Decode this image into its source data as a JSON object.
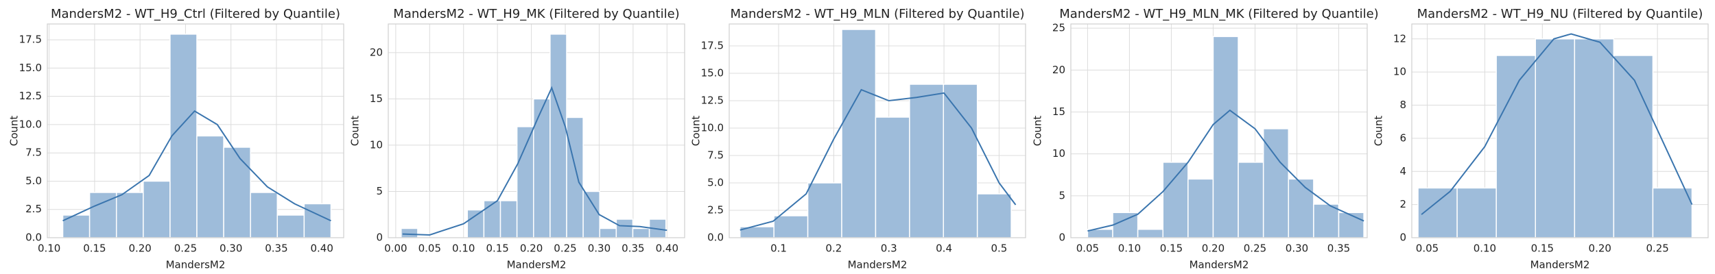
{
  "chart_data": [
    {
      "type": "histogram",
      "title": "MandersM2 - WT_H9_Ctrl (Filtered by Quantile)",
      "xlabel": "MandersM2",
      "ylabel": "Count",
      "bins": [
        0.115,
        0.1445,
        0.174,
        0.2035,
        0.233,
        0.2625,
        0.292,
        0.3215,
        0.351,
        0.3805,
        0.41
      ],
      "values": [
        2,
        4,
        4,
        5,
        18,
        9,
        8,
        4,
        2,
        3
      ],
      "kde": {
        "x": [
          0.115,
          0.15,
          0.18,
          0.21,
          0.235,
          0.26,
          0.285,
          0.31,
          0.34,
          0.37,
          0.41
        ],
        "values": [
          1.5,
          2.8,
          3.8,
          5.5,
          9,
          11.2,
          10,
          7,
          4.5,
          3,
          1.5
        ]
      },
      "color": "#9ebcda",
      "line_color": "#3a75ae",
      "grid": true,
      "xlim": [
        0.098,
        0.424
      ],
      "ylim": [
        0,
        18.9
      ],
      "xticks": [
        {
          "value": 0.1,
          "label": "0.10"
        },
        0.15,
        {
          "value": 0.2,
          "label": "0.20"
        },
        0.25,
        {
          "value": 0.3,
          "label": "0.30"
        },
        0.35,
        {
          "value": 0.4,
          "label": "0.40"
        }
      ],
      "yticks": [
        {
          "value": 0,
          "label": "0.0"
        },
        2.5,
        {
          "value": 5,
          "label": "5.0"
        },
        7.5,
        {
          "value": 10,
          "label": "10.0"
        },
        12.5,
        {
          "value": 15,
          "label": "15.0"
        },
        17.5
      ]
    },
    {
      "type": "histogram",
      "title": "MandersM2 - WT_H9_MK (Filtered by Quantile)",
      "xlabel": "MandersM2",
      "ylabel": "Count",
      "bins": [
        0.008,
        0.0324,
        0.0568,
        0.0812,
        0.1056,
        0.13,
        0.1544,
        0.1788,
        0.2032,
        0.2276,
        0.252,
        0.2764,
        0.3008,
        0.3252,
        0.3496,
        0.374,
        0.3984
      ],
      "values": [
        1,
        0,
        0,
        0,
        3,
        4,
        4,
        12,
        15,
        22,
        13,
        5,
        1,
        2,
        1,
        2
      ],
      "kde": {
        "x": [
          0.01,
          0.05,
          0.1,
          0.15,
          0.18,
          0.21,
          0.23,
          0.25,
          0.27,
          0.3,
          0.33,
          0.36,
          0.4
        ],
        "values": [
          0.4,
          0.3,
          1.5,
          4,
          8,
          13,
          16.2,
          12,
          6,
          2.5,
          1.3,
          1.2,
          0.8
        ]
      },
      "color": "#9ebcda",
      "line_color": "#3a75ae",
      "grid": true,
      "xlim": [
        -0.011,
        0.426
      ],
      "ylim": [
        0,
        23.1
      ],
      "xticks": [
        {
          "value": 0,
          "label": "0.00"
        },
        0.05,
        {
          "value": 0.1,
          "label": "0.10"
        },
        0.15,
        {
          "value": 0.2,
          "label": "0.20"
        },
        0.25,
        {
          "value": 0.3,
          "label": "0.30"
        },
        0.35,
        {
          "value": 0.4,
          "label": "0.40"
        }
      ],
      "yticks": [
        0,
        5,
        10,
        15,
        20
      ]
    },
    {
      "type": "histogram",
      "title": "MandersM2 - WT_H9_MLN (Filtered by Quantile)",
      "xlabel": "MandersM2",
      "ylabel": "Count",
      "bins": [
        0.03,
        0.0915,
        0.153,
        0.2145,
        0.276,
        0.3375,
        0.399,
        0.4605,
        0.522
      ],
      "values": [
        1,
        2,
        5,
        19,
        11,
        14,
        14,
        4
      ],
      "kde": {
        "x": [
          0.03,
          0.09,
          0.15,
          0.2,
          0.25,
          0.3,
          0.35,
          0.4,
          0.45,
          0.5,
          0.53
        ],
        "values": [
          0.7,
          1.5,
          4,
          9,
          13.5,
          12.5,
          12.8,
          13.2,
          10,
          5,
          3
        ]
      },
      "color": "#9ebcda",
      "line_color": "#3a75ae",
      "grid": true,
      "xlim": [
        0.0104,
        0.548
      ],
      "ylim": [
        0,
        19.5
      ],
      "xticks": [
        0.1,
        0.2,
        0.3,
        0.4,
        0.5
      ],
      "yticks": [
        {
          "value": 0,
          "label": "0.0"
        },
        2.5,
        {
          "value": 5,
          "label": "5.0"
        },
        7.5,
        {
          "value": 10,
          "label": "10.0"
        },
        12.5,
        {
          "value": 15,
          "label": "15.0"
        },
        17.5
      ]
    },
    {
      "type": "histogram",
      "title": "MandersM2 - WT_H9_MLN_MK (Filtered by Quantile)",
      "xlabel": "MandersM2",
      "ylabel": "Count",
      "bins": [
        0.05,
        0.08,
        0.11,
        0.14,
        0.17,
        0.2,
        0.23,
        0.26,
        0.29,
        0.32,
        0.35,
        0.38
      ],
      "values": [
        1,
        3,
        1,
        9,
        7,
        24,
        9,
        13,
        7,
        4,
        3
      ],
      "kde": {
        "x": [
          0.05,
          0.08,
          0.11,
          0.14,
          0.17,
          0.2,
          0.22,
          0.25,
          0.28,
          0.31,
          0.34,
          0.38
        ],
        "values": [
          0.8,
          1.5,
          2.8,
          5.5,
          9,
          13.5,
          15.2,
          13,
          9,
          6,
          3.8,
          2
        ]
      },
      "color": "#9ebcda",
      "line_color": "#3a75ae",
      "grid": true,
      "xlim": [
        0.03,
        0.384
      ],
      "ylim": [
        0,
        25.5
      ],
      "xticks": [
        0.05,
        {
          "value": 0.1,
          "label": "0.10"
        },
        0.15,
        {
          "value": 0.2,
          "label": "0.20"
        },
        0.25,
        {
          "value": 0.3,
          "label": "0.30"
        },
        0.35
      ],
      "yticks": [
        0,
        5,
        10,
        15,
        20,
        25
      ]
    },
    {
      "type": "histogram",
      "title": "MandersM2 - WT_H9_NU (Filtered by Quantile)",
      "xlabel": "MandersM2",
      "ylabel": "Count",
      "bins": [
        0.042,
        0.076,
        0.11,
        0.144,
        0.178,
        0.212,
        0.246,
        0.28
      ],
      "values": [
        3,
        3,
        11,
        12,
        12,
        11,
        3
      ],
      "kde": {
        "x": [
          0.045,
          0.07,
          0.1,
          0.13,
          0.16,
          0.175,
          0.2,
          0.23,
          0.25,
          0.27,
          0.28
        ],
        "values": [
          1.4,
          2.8,
          5.5,
          9.5,
          12,
          12.3,
          11.8,
          9.5,
          6.5,
          3.5,
          2
        ]
      },
      "color": "#9ebcda",
      "line_color": "#3a75ae",
      "grid": true,
      "xlim": [
        0.0366,
        0.294
      ],
      "ylim": [
        0,
        12.9
      ],
      "xticks": [
        0.05,
        {
          "value": 0.1,
          "label": "0.10"
        },
        0.15,
        {
          "value": 0.2,
          "label": "0.20"
        },
        0.25
      ],
      "yticks": [
        0,
        2,
        4,
        6,
        8,
        10,
        12
      ]
    }
  ]
}
